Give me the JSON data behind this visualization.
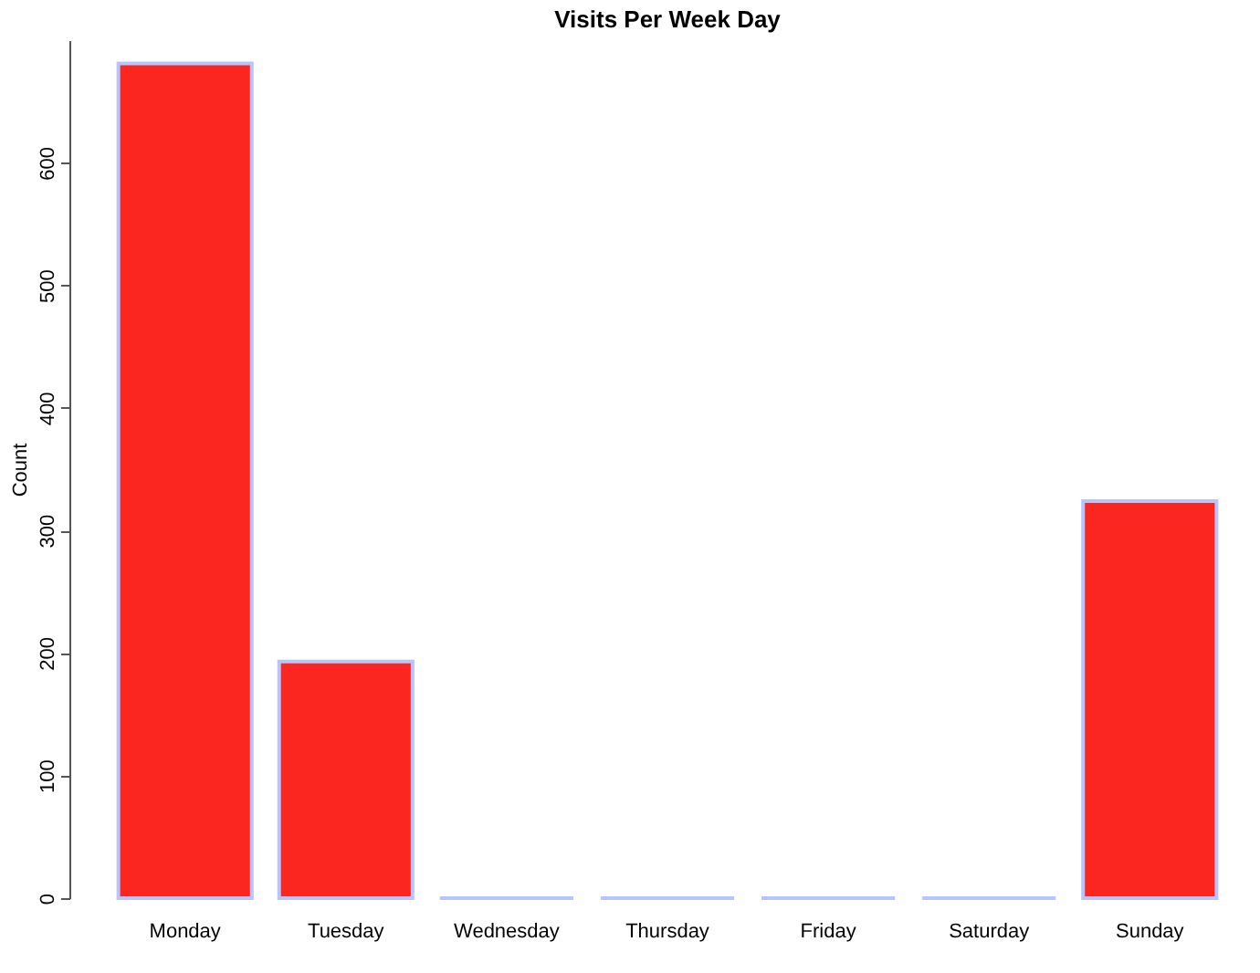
{
  "chart_data": {
    "type": "bar",
    "title": "Visits Per Week Day",
    "ylabel": "Count",
    "categories": [
      "Monday",
      "Tuesday",
      "Wednesday",
      "Thursday",
      "Friday",
      "Saturday",
      "Sunday"
    ],
    "values": [
      681,
      193,
      0,
      0,
      0,
      0,
      324
    ],
    "color": "#fc2620",
    "ylim": [
      0,
      700
    ],
    "yticks": [
      0,
      100,
      200,
      300,
      400,
      500,
      600
    ],
    "grid": false
  }
}
